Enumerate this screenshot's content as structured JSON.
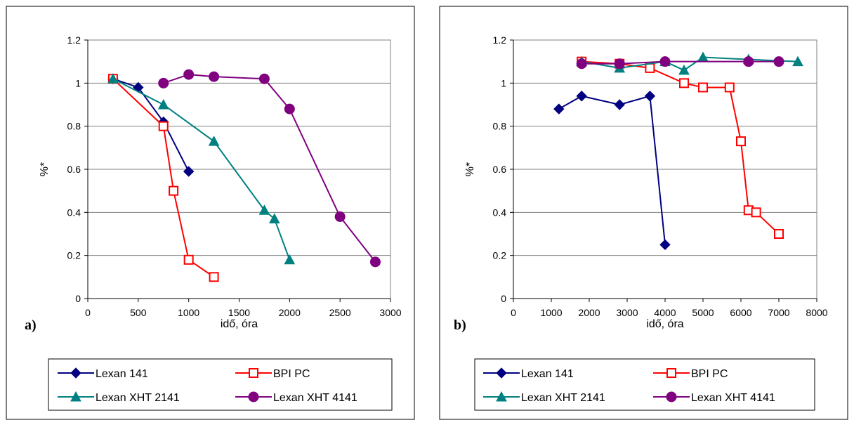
{
  "chart_data": [
    {
      "type": "line",
      "panel_label": "a)",
      "xlabel": "idő, óra",
      "ylabel": "%*",
      "xlim": [
        0,
        3000
      ],
      "ylim": [
        0,
        1.2
      ],
      "xticks": [
        "0",
        "500",
        "1000",
        "1500",
        "2000",
        "2500",
        "3000"
      ],
      "yticks": [
        "0",
        "0.2",
        "0.4",
        "0.6",
        "0.8",
        "1",
        "1.2"
      ],
      "grid": "horizontal",
      "legend": "bottom",
      "series": [
        {
          "name": "Lexan 141",
          "color": "#000080",
          "marker": "diamond",
          "x": [
            250,
            500,
            750,
            1000
          ],
          "y": [
            1.02,
            0.98,
            0.82,
            0.59
          ]
        },
        {
          "name": "BPI PC",
          "color": "#ff0000",
          "marker": "square-open",
          "x": [
            250,
            750,
            850,
            1000,
            1250
          ],
          "y": [
            1.02,
            0.8,
            0.5,
            0.18,
            0.1
          ]
        },
        {
          "name": "Lexan XHT 2141",
          "color": "#008080",
          "marker": "triangle",
          "x": [
            250,
            750,
            1250,
            1750,
            1850,
            2000
          ],
          "y": [
            1.02,
            0.9,
            0.73,
            0.41,
            0.37,
            0.18
          ]
        },
        {
          "name": "Lexan XHT 4141",
          "color": "#800080",
          "marker": "circle",
          "x": [
            750,
            1000,
            1250,
            1750,
            2000,
            2500,
            2850
          ],
          "y": [
            1.0,
            1.04,
            1.03,
            1.02,
            0.88,
            0.38,
            0.17
          ]
        }
      ]
    },
    {
      "type": "line",
      "panel_label": "b)",
      "xlabel": "idő, óra",
      "ylabel": "%*",
      "xlim": [
        0,
        8000
      ],
      "ylim": [
        0,
        1.2
      ],
      "xticks": [
        "0",
        "1000",
        "2000",
        "3000",
        "4000",
        "5000",
        "6000",
        "7000",
        "8000"
      ],
      "yticks": [
        "0",
        "0.2",
        "0.4",
        "0.6",
        "0.8",
        "1",
        "1.2"
      ],
      "grid": "horizontal",
      "legend": "bottom",
      "series": [
        {
          "name": "Lexan 141",
          "color": "#000080",
          "marker": "diamond",
          "x": [
            1200,
            1800,
            2800,
            3600,
            4000
          ],
          "y": [
            0.88,
            0.94,
            0.9,
            0.94,
            0.25
          ]
        },
        {
          "name": "BPI PC",
          "color": "#ff0000",
          "marker": "square-open",
          "x": [
            1800,
            2800,
            3600,
            4500,
            5000,
            5700,
            6000,
            6200,
            6400,
            7000
          ],
          "y": [
            1.1,
            1.09,
            1.07,
            1.0,
            0.98,
            0.98,
            0.73,
            0.41,
            0.4,
            0.3
          ]
        },
        {
          "name": "Lexan XHT 2141",
          "color": "#008080",
          "marker": "triangle",
          "x": [
            1800,
            2800,
            4000,
            4500,
            5000,
            6200,
            7500
          ],
          "y": [
            1.1,
            1.07,
            1.1,
            1.06,
            1.12,
            1.11,
            1.1
          ]
        },
        {
          "name": "Lexan XHT 4141",
          "color": "#800080",
          "marker": "circle",
          "x": [
            1800,
            2800,
            4000,
            6200,
            7000
          ],
          "y": [
            1.09,
            1.09,
            1.1,
            1.1,
            1.1
          ]
        }
      ]
    }
  ]
}
